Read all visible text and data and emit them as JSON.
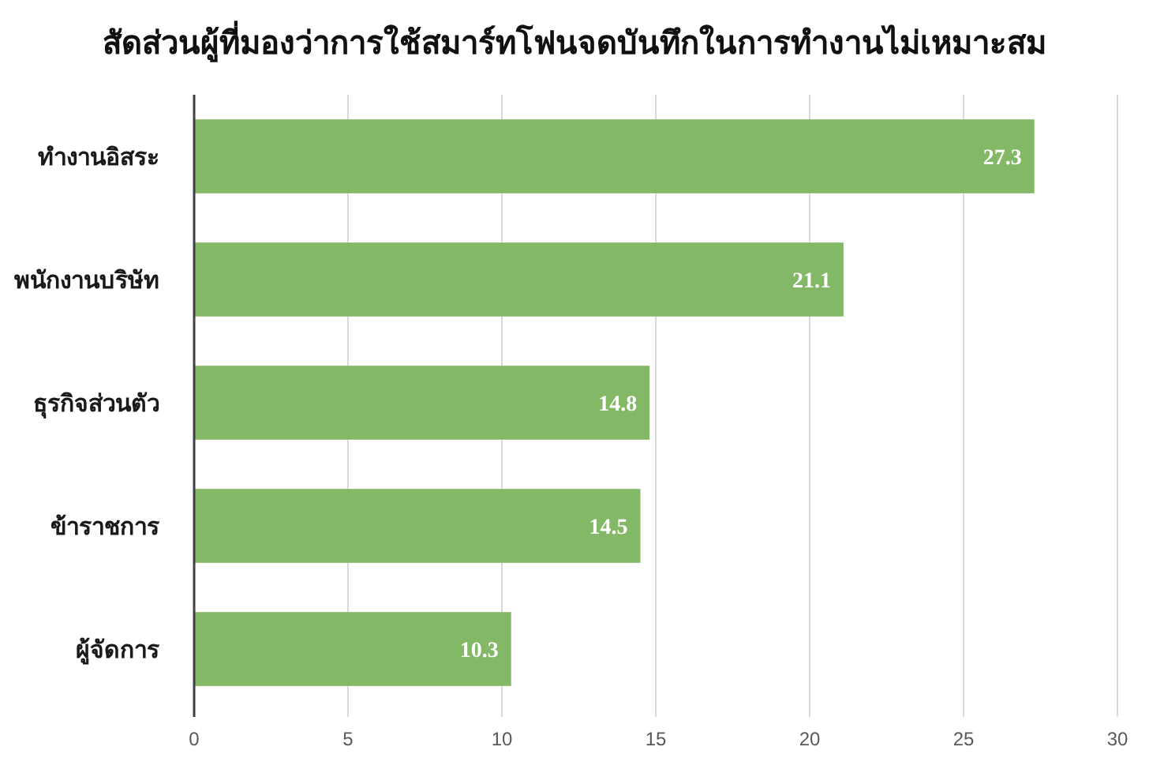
{
  "chart_data": {
    "type": "bar",
    "orientation": "horizontal",
    "title": "สัดส่วนผู้ที่มองว่าการใช้สมาร์ทโฟนจดบันทึกในการทำงานไม่เหมาะสม",
    "categories": [
      "ทำงานอิสระ",
      "พนักงานบริษัท",
      "ธุรกิจส่วนตัว",
      "ข้าราชการ",
      "ผู้จัดการ"
    ],
    "values": [
      27.3,
      21.1,
      14.8,
      14.5,
      10.3
    ],
    "color": "#83b966",
    "xlim": [
      0,
      30
    ],
    "xticks": [
      0,
      5,
      10,
      15,
      20,
      25,
      30
    ],
    "grid": "x",
    "data_labels": true
  }
}
